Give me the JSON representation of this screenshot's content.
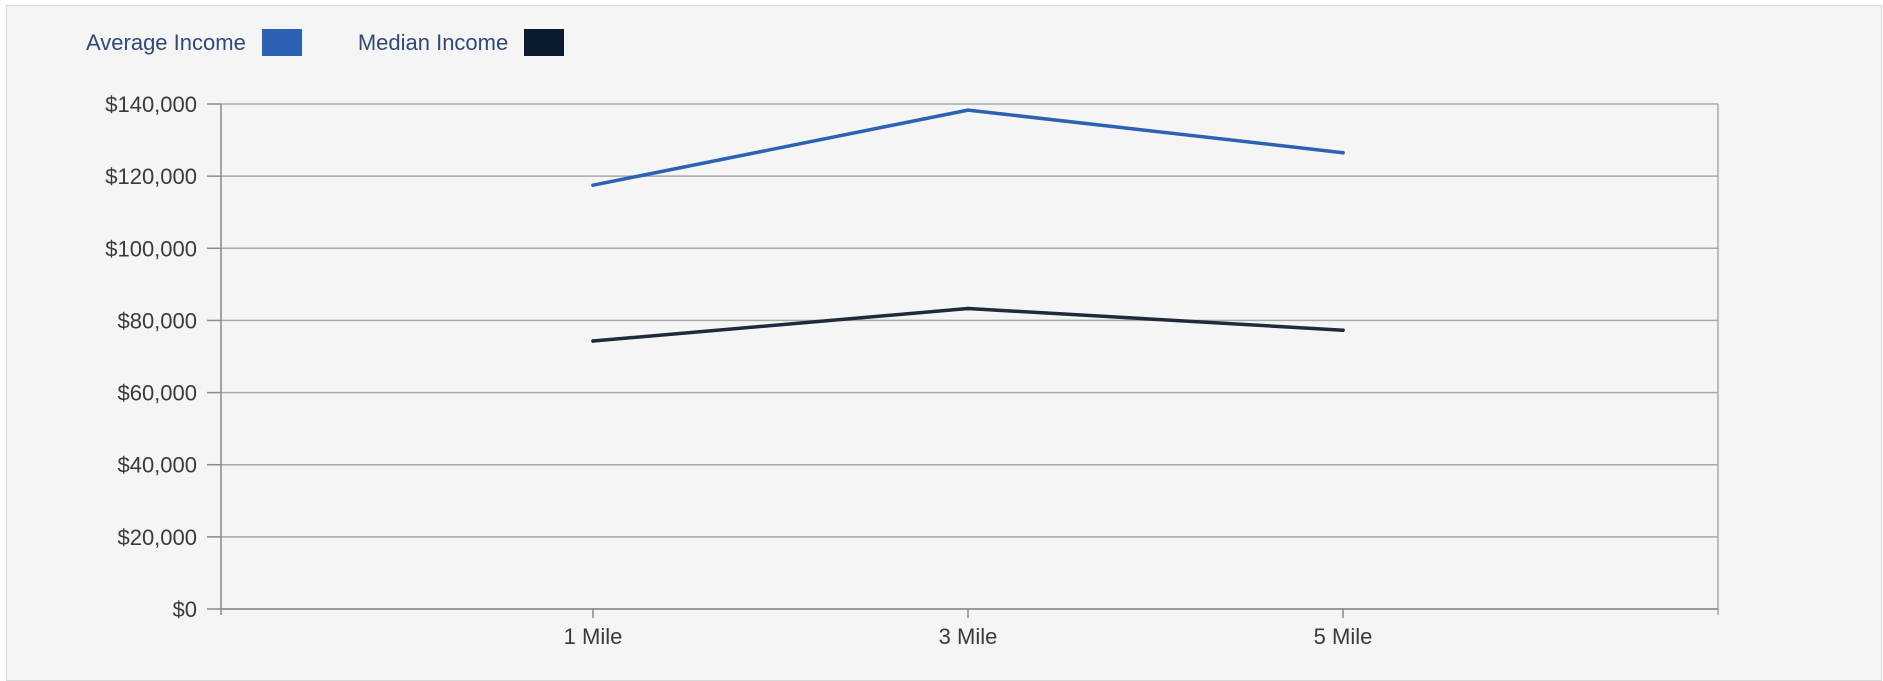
{
  "legend": {
    "items": [
      {
        "label": "Average Income",
        "color": "#2c61b3"
      },
      {
        "label": "Median Income",
        "color": "#0b1a2e"
      }
    ]
  },
  "chart_data": {
    "type": "line",
    "title": "",
    "xlabel": "",
    "ylabel": "",
    "categories": [
      "1 Mile",
      "3 Mile",
      "5 Mile"
    ],
    "series": [
      {
        "name": "Average Income",
        "color": "#2c61b3",
        "values": [
          117500,
          138300,
          126500
        ]
      },
      {
        "name": "Median Income",
        "color": "#1e2b3c",
        "values": [
          74300,
          83300,
          77300
        ]
      }
    ],
    "ylim": [
      0,
      140000
    ],
    "yticks": [
      0,
      20000,
      40000,
      60000,
      80000,
      100000,
      120000,
      140000
    ],
    "ytick_labels": [
      "$0",
      "$20,000",
      "$40,000",
      "$60,000",
      "$80,000",
      "$100,000",
      "$120,000",
      "$140,000"
    ],
    "grid": true,
    "legend_position": "top-left"
  }
}
